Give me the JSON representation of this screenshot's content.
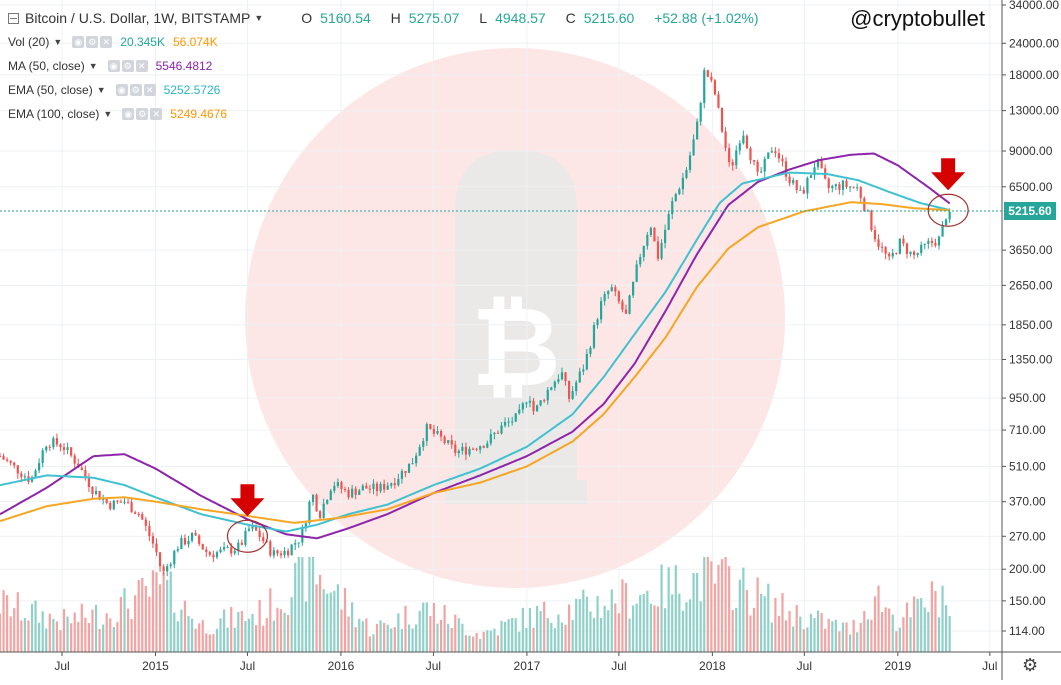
{
  "header": {
    "symbol": "Bitcoin / U.S. Dollar, 1W, BITSTAMP",
    "ohlc": [
      {
        "key": "O",
        "value": "5160.54"
      },
      {
        "key": "H",
        "value": "5275.07"
      },
      {
        "key": "L",
        "value": "4948.57"
      },
      {
        "key": "C",
        "value": "5215.60"
      },
      {
        "key": "",
        "value": "+52.88 (+1.02%)"
      }
    ],
    "handle": "@cryptobullet"
  },
  "indicators": [
    {
      "label": "Vol (20)",
      "values": [
        "20.345K",
        "56.074K"
      ],
      "colors": [
        "#26a69a",
        "#ff9800"
      ]
    },
    {
      "label": "MA (50, close)",
      "values": [
        "5546.4812"
      ],
      "colors": [
        "#8e24aa"
      ]
    },
    {
      "label": "EMA (50, close)",
      "values": [
        "5252.5726"
      ],
      "colors": [
        "#26b5c6"
      ]
    },
    {
      "label": "EMA (100, close)",
      "values": [
        "5249.4676"
      ],
      "colors": [
        "#ff9800"
      ]
    }
  ],
  "colors": {
    "up": "#26a69a",
    "down": "#ef5350",
    "vol_up": "#8fd1c9",
    "vol_down": "#f3a4a2",
    "ma50": "#8e24aa",
    "ema50": "#3fc1d0",
    "ema100": "#f5a623",
    "grid": "#eef1f4",
    "arrow": "#d50000",
    "circle": "#a0302e",
    "watermark_circle": "#fde6e6",
    "watermark_bullet": "#e8e8e8"
  },
  "current_price_label": "5215.60",
  "chart_data": {
    "type": "candlestick",
    "title": "Bitcoin / U.S. Dollar, 1W, BITSTAMP",
    "y_scale": "log",
    "y_ticks": [
      34000,
      24000,
      18000,
      13000,
      9000,
      6500,
      5215.6,
      3650,
      2650,
      1850,
      1350,
      950,
      710,
      510,
      370,
      270,
      200,
      150,
      114
    ],
    "y_tick_labels": [
      "34000.00",
      "24000.00",
      "18000.00",
      "13000.00",
      "9000.00",
      "6500.00",
      "",
      "3650.00",
      "2650.00",
      "1850.00",
      "1350.00",
      "950.00",
      "710.00",
      "510.00",
      "370.00",
      "270.00",
      "200.00",
      "150.00",
      "114.00"
    ],
    "x_tick_labels": [
      "Jul",
      "2015",
      "Jul",
      "2016",
      "Jul",
      "2017",
      "Jul",
      "2018",
      "Jul",
      "2019",
      "Jul"
    ],
    "x_tick_dates": [
      "2014-07-01",
      "2015-01-01",
      "2015-07-01",
      "2016-01-01",
      "2016-07-01",
      "2017-01-01",
      "2017-07-01",
      "2018-01-01",
      "2018-07-01",
      "2019-01-01",
      "2019-07-01"
    ],
    "x_range": [
      "2014-03-01",
      "2019-07-25"
    ],
    "price_path": [
      [
        "2014-03-01",
        560
      ],
      [
        "2014-05-01",
        450
      ],
      [
        "2014-06-01",
        640
      ],
      [
        "2014-07-01",
        620
      ],
      [
        "2014-08-01",
        520
      ],
      [
        "2014-09-01",
        410
      ],
      [
        "2014-10-01",
        360
      ],
      [
        "2014-11-01",
        370
      ],
      [
        "2014-12-01",
        330
      ],
      [
        "2015-01-01",
        240
      ],
      [
        "2015-01-15",
        190
      ],
      [
        "2015-02-15",
        250
      ],
      [
        "2015-03-15",
        270
      ],
      [
        "2015-04-15",
        230
      ],
      [
        "2015-05-15",
        235
      ],
      [
        "2015-06-15",
        245
      ],
      [
        "2015-07-05",
        290
      ],
      [
        "2015-07-20",
        280
      ],
      [
        "2015-08-20",
        230
      ],
      [
        "2015-09-15",
        235
      ],
      [
        "2015-10-15",
        270
      ],
      [
        "2015-11-05",
        400
      ],
      [
        "2015-11-20",
        330
      ],
      [
        "2015-12-15",
        440
      ],
      [
        "2016-01-15",
        400
      ],
      [
        "2016-02-15",
        420
      ],
      [
        "2016-03-15",
        415
      ],
      [
        "2016-04-15",
        450
      ],
      [
        "2016-05-20",
        530
      ],
      [
        "2016-06-17",
        720
      ],
      [
        "2016-07-15",
        660
      ],
      [
        "2016-08-15",
        580
      ],
      [
        "2016-09-15",
        605
      ],
      [
        "2016-10-15",
        640
      ],
      [
        "2016-11-15",
        740
      ],
      [
        "2016-12-15",
        800
      ],
      [
        "2017-01-05",
        1000
      ],
      [
        "2017-01-15",
        830
      ],
      [
        "2017-02-15",
        1050
      ],
      [
        "2017-03-10",
        1200
      ],
      [
        "2017-03-25",
        950
      ],
      [
        "2017-04-25",
        1300
      ],
      [
        "2017-05-25",
        2200
      ],
      [
        "2017-06-15",
        2600
      ],
      [
        "2017-07-15",
        2000
      ],
      [
        "2017-08-10",
        3400
      ],
      [
        "2017-09-01",
        4700
      ],
      [
        "2017-09-15",
        3400
      ],
      [
        "2017-10-15",
        5700
      ],
      [
        "2017-11-10",
        7500
      ],
      [
        "2017-12-01",
        11000
      ],
      [
        "2017-12-17",
        19000
      ],
      [
        "2018-01-05",
        15500
      ],
      [
        "2018-02-05",
        7500
      ],
      [
        "2018-03-01",
        11000
      ],
      [
        "2018-04-01",
        7000
      ],
      [
        "2018-05-01",
        9500
      ],
      [
        "2018-06-01",
        7000
      ],
      [
        "2018-06-25",
        6000
      ],
      [
        "2018-07-25",
        8300
      ],
      [
        "2018-08-15",
        6400
      ],
      [
        "2018-09-15",
        6600
      ],
      [
        "2018-10-15",
        6400
      ],
      [
        "2018-11-20",
        4000
      ],
      [
        "2018-12-15",
        3300
      ],
      [
        "2019-01-05",
        3900
      ],
      [
        "2019-02-01",
        3450
      ],
      [
        "2019-03-01",
        3850
      ],
      [
        "2019-03-25",
        4050
      ],
      [
        "2019-04-05",
        5000
      ],
      [
        "2019-04-15",
        5215.6
      ]
    ],
    "series": [
      {
        "name": "MA (50, close)",
        "color": "#8e24aa",
        "points": [
          [
            "2014-03-01",
            330
          ],
          [
            "2014-06-01",
            420
          ],
          [
            "2014-09-01",
            560
          ],
          [
            "2014-11-01",
            570
          ],
          [
            "2015-01-01",
            500
          ],
          [
            "2015-04-01",
            390
          ],
          [
            "2015-07-01",
            315
          ],
          [
            "2015-09-15",
            275
          ],
          [
            "2015-11-15",
            265
          ],
          [
            "2016-01-15",
            290
          ],
          [
            "2016-04-01",
            330
          ],
          [
            "2016-07-01",
            400
          ],
          [
            "2016-10-01",
            470
          ],
          [
            "2017-01-01",
            560
          ],
          [
            "2017-04-01",
            700
          ],
          [
            "2017-06-01",
            900
          ],
          [
            "2017-08-01",
            1300
          ],
          [
            "2017-10-01",
            2100
          ],
          [
            "2017-12-01",
            3500
          ],
          [
            "2018-02-01",
            5500
          ],
          [
            "2018-04-01",
            6800
          ],
          [
            "2018-06-01",
            7600
          ],
          [
            "2018-08-01",
            8300
          ],
          [
            "2018-10-01",
            8700
          ],
          [
            "2018-11-15",
            8800
          ],
          [
            "2019-01-01",
            7900
          ],
          [
            "2019-03-01",
            6500
          ],
          [
            "2019-04-15",
            5550
          ]
        ]
      },
      {
        "name": "EMA (50, close)",
        "color": "#3fc1d0",
        "points": [
          [
            "2014-03-01",
            430
          ],
          [
            "2014-06-01",
            470
          ],
          [
            "2014-09-01",
            460
          ],
          [
            "2014-11-01",
            430
          ],
          [
            "2015-01-01",
            385
          ],
          [
            "2015-04-01",
            330
          ],
          [
            "2015-07-01",
            300
          ],
          [
            "2015-09-15",
            282
          ],
          [
            "2015-11-15",
            300
          ],
          [
            "2016-01-15",
            330
          ],
          [
            "2016-04-01",
            360
          ],
          [
            "2016-07-01",
            430
          ],
          [
            "2016-10-01",
            500
          ],
          [
            "2017-01-01",
            610
          ],
          [
            "2017-04-01",
            820
          ],
          [
            "2017-06-01",
            1150
          ],
          [
            "2017-08-01",
            1700
          ],
          [
            "2017-10-01",
            2500
          ],
          [
            "2017-12-01",
            4000
          ],
          [
            "2018-01-15",
            5600
          ],
          [
            "2018-03-01",
            6700
          ],
          [
            "2018-06-01",
            7400
          ],
          [
            "2018-08-15",
            7300
          ],
          [
            "2018-10-15",
            6900
          ],
          [
            "2018-12-15",
            6200
          ],
          [
            "2019-02-15",
            5600
          ],
          [
            "2019-04-15",
            5250
          ]
        ]
      },
      {
        "name": "EMA (100, close)",
        "color": "#f5a623",
        "points": [
          [
            "2014-03-01",
            310
          ],
          [
            "2014-06-01",
            355
          ],
          [
            "2014-09-01",
            380
          ],
          [
            "2014-11-01",
            385
          ],
          [
            "2015-01-01",
            370
          ],
          [
            "2015-04-01",
            345
          ],
          [
            "2015-07-01",
            325
          ],
          [
            "2015-10-01",
            305
          ],
          [
            "2016-01-01",
            320
          ],
          [
            "2016-04-01",
            345
          ],
          [
            "2016-07-01",
            400
          ],
          [
            "2016-10-01",
            440
          ],
          [
            "2017-01-01",
            510
          ],
          [
            "2017-04-01",
            640
          ],
          [
            "2017-06-01",
            820
          ],
          [
            "2017-08-01",
            1150
          ],
          [
            "2017-10-01",
            1650
          ],
          [
            "2017-12-01",
            2600
          ],
          [
            "2018-02-01",
            3700
          ],
          [
            "2018-04-01",
            4500
          ],
          [
            "2018-07-01",
            5200
          ],
          [
            "2018-10-01",
            5650
          ],
          [
            "2018-12-01",
            5550
          ],
          [
            "2019-02-01",
            5350
          ],
          [
            "2019-04-15",
            5250
          ]
        ]
      }
    ],
    "volume_index": [
      [
        "2014-03-01",
        0.55
      ],
      [
        "2014-07-01",
        0.35
      ],
      [
        "2014-10-01",
        0.45
      ],
      [
        "2015-01-15",
        0.75
      ],
      [
        "2015-04-01",
        0.3
      ],
      [
        "2015-08-01",
        0.45
      ],
      [
        "2015-11-05",
        0.95
      ],
      [
        "2016-03-01",
        0.25
      ],
      [
        "2016-06-17",
        0.5
      ],
      [
        "2016-10-01",
        0.2
      ],
      [
        "2017-01-05",
        0.4
      ],
      [
        "2017-05-25",
        0.55
      ],
      [
        "2017-09-15",
        0.7
      ],
      [
        "2017-12-17",
        0.85
      ],
      [
        "2018-02-05",
        0.8
      ],
      [
        "2018-06-01",
        0.45
      ],
      [
        "2018-10-01",
        0.25
      ],
      [
        "2018-11-20",
        0.65
      ],
      [
        "2019-01-01",
        0.35
      ],
      [
        "2019-04-05",
        0.7
      ],
      [
        "2019-04-15",
        0.25
      ]
    ],
    "annotations": [
      {
        "type": "arrow-circle",
        "date": "2015-07-01",
        "price": 270
      },
      {
        "type": "arrow-circle",
        "date": "2019-04-10",
        "price": 5250
      }
    ]
  }
}
